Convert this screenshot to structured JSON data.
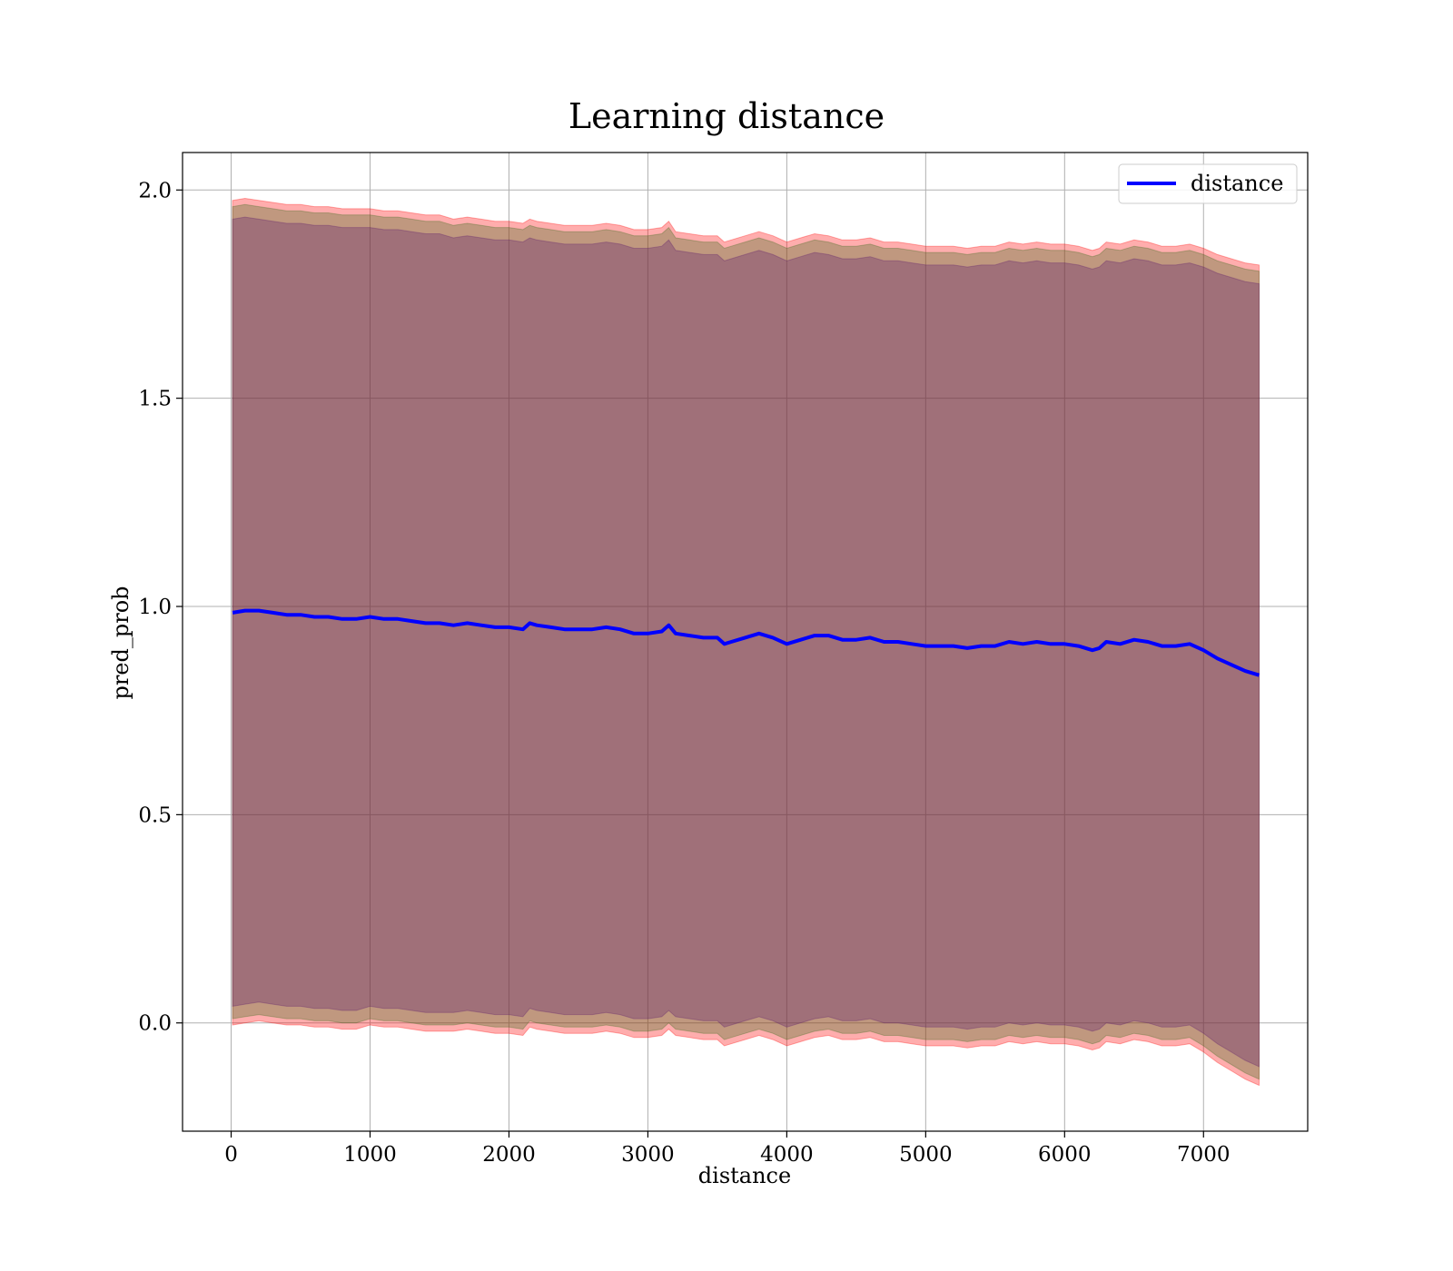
{
  "chart_data": {
    "type": "line",
    "title": "Learning distance",
    "xlabel": "distance",
    "ylabel": "pred_prob",
    "xlim": [
      -350,
      7750
    ],
    "ylim": [
      -0.26,
      2.09
    ],
    "xticks": [
      0,
      1000,
      2000,
      3000,
      4000,
      5000,
      6000,
      7000
    ],
    "yticks": [
      0.0,
      0.5,
      1.0,
      1.5,
      2.0
    ],
    "xtick_labels": [
      "0",
      "1000",
      "2000",
      "3000",
      "4000",
      "5000",
      "6000",
      "7000"
    ],
    "ytick_labels": [
      "0.0",
      "0.5",
      "1.0",
      "1.5",
      "2.0"
    ],
    "grid": true,
    "legend_position": "top-right",
    "series": [
      {
        "name": "distance",
        "color": "#0000ff",
        "x": [
          10,
          100,
          200,
          300,
          400,
          500,
          600,
          700,
          800,
          900,
          1000,
          1100,
          1200,
          1300,
          1400,
          1500,
          1600,
          1700,
          1800,
          1900,
          2000,
          2100,
          2150,
          2200,
          2300,
          2400,
          2500,
          2600,
          2700,
          2800,
          2900,
          3000,
          3100,
          3150,
          3200,
          3300,
          3400,
          3500,
          3550,
          3600,
          3700,
          3800,
          3900,
          4000,
          4100,
          4200,
          4300,
          4400,
          4500,
          4600,
          4700,
          4800,
          4900,
          5000,
          5100,
          5200,
          5300,
          5400,
          5500,
          5600,
          5700,
          5800,
          5900,
          6000,
          6100,
          6200,
          6250,
          6300,
          6400,
          6500,
          6600,
          6700,
          6800,
          6900,
          7000,
          7100,
          7200,
          7300,
          7400
        ],
        "y": [
          0.985,
          0.99,
          0.99,
          0.985,
          0.98,
          0.98,
          0.975,
          0.975,
          0.97,
          0.97,
          0.975,
          0.97,
          0.97,
          0.965,
          0.96,
          0.96,
          0.955,
          0.96,
          0.955,
          0.95,
          0.95,
          0.945,
          0.96,
          0.955,
          0.95,
          0.945,
          0.945,
          0.945,
          0.95,
          0.945,
          0.935,
          0.935,
          0.94,
          0.955,
          0.935,
          0.93,
          0.925,
          0.925,
          0.91,
          0.915,
          0.925,
          0.935,
          0.925,
          0.91,
          0.92,
          0.93,
          0.93,
          0.92,
          0.92,
          0.925,
          0.915,
          0.915,
          0.91,
          0.905,
          0.905,
          0.905,
          0.9,
          0.905,
          0.905,
          0.915,
          0.91,
          0.915,
          0.91,
          0.91,
          0.905,
          0.895,
          0.9,
          0.915,
          0.91,
          0.92,
          0.915,
          0.905,
          0.905,
          0.91,
          0.895,
          0.875,
          0.86,
          0.845,
          0.835
        ]
      }
    ],
    "bands": [
      {
        "color": "#ff0000",
        "opacity": 0.32,
        "upper_offset": [
          0.99,
          0.99,
          0.985,
          0.985,
          0.985,
          0.985,
          0.985,
          0.985,
          0.985,
          0.985,
          0.98,
          0.98,
          0.98,
          0.98,
          0.98,
          0.98,
          0.975,
          0.975,
          0.975,
          0.975,
          0.975,
          0.975,
          0.97,
          0.97,
          0.97,
          0.97,
          0.97,
          0.97,
          0.97,
          0.97,
          0.97,
          0.97,
          0.97,
          0.97,
          0.965,
          0.965,
          0.965,
          0.965,
          0.965,
          0.965,
          0.965,
          0.965,
          0.965,
          0.965,
          0.965,
          0.965,
          0.96,
          0.96,
          0.96,
          0.96,
          0.96,
          0.96,
          0.96,
          0.96,
          0.96,
          0.96,
          0.96,
          0.96,
          0.96,
          0.96,
          0.96,
          0.96,
          0.96,
          0.96,
          0.96,
          0.96,
          0.96,
          0.96,
          0.96,
          0.96,
          0.96,
          0.96,
          0.96,
          0.96,
          0.965,
          0.97,
          0.975,
          0.98,
          0.985
        ],
        "lower_offset": [
          0.99,
          0.99,
          0.985,
          0.985,
          0.985,
          0.985,
          0.985,
          0.985,
          0.985,
          0.985,
          0.98,
          0.98,
          0.98,
          0.98,
          0.98,
          0.98,
          0.975,
          0.975,
          0.975,
          0.975,
          0.975,
          0.975,
          0.97,
          0.97,
          0.97,
          0.97,
          0.97,
          0.97,
          0.97,
          0.97,
          0.97,
          0.97,
          0.97,
          0.97,
          0.965,
          0.965,
          0.965,
          0.965,
          0.965,
          0.965,
          0.965,
          0.965,
          0.965,
          0.965,
          0.965,
          0.965,
          0.96,
          0.96,
          0.96,
          0.96,
          0.96,
          0.96,
          0.96,
          0.96,
          0.96,
          0.96,
          0.96,
          0.96,
          0.96,
          0.96,
          0.96,
          0.96,
          0.96,
          0.96,
          0.96,
          0.96,
          0.96,
          0.96,
          0.96,
          0.96,
          0.96,
          0.96,
          0.96,
          0.96,
          0.965,
          0.97,
          0.975,
          0.98,
          0.985
        ]
      },
      {
        "color": "#3a6e1e",
        "opacity": 0.32,
        "upper_offset": [
          0.975,
          0.975,
          0.97,
          0.97,
          0.97,
          0.97,
          0.97,
          0.97,
          0.97,
          0.97,
          0.965,
          0.965,
          0.965,
          0.965,
          0.965,
          0.965,
          0.96,
          0.96,
          0.96,
          0.96,
          0.96,
          0.96,
          0.955,
          0.955,
          0.955,
          0.955,
          0.955,
          0.955,
          0.955,
          0.955,
          0.955,
          0.955,
          0.955,
          0.955,
          0.95,
          0.95,
          0.95,
          0.95,
          0.95,
          0.95,
          0.95,
          0.95,
          0.95,
          0.95,
          0.95,
          0.95,
          0.945,
          0.945,
          0.945,
          0.945,
          0.945,
          0.945,
          0.945,
          0.945,
          0.945,
          0.945,
          0.945,
          0.945,
          0.945,
          0.945,
          0.945,
          0.945,
          0.945,
          0.945,
          0.945,
          0.945,
          0.945,
          0.945,
          0.945,
          0.945,
          0.945,
          0.945,
          0.945,
          0.945,
          0.95,
          0.955,
          0.96,
          0.965,
          0.97
        ],
        "lower_offset": [
          0.975,
          0.975,
          0.97,
          0.97,
          0.97,
          0.97,
          0.97,
          0.97,
          0.97,
          0.97,
          0.965,
          0.965,
          0.965,
          0.965,
          0.965,
          0.965,
          0.96,
          0.96,
          0.96,
          0.96,
          0.96,
          0.96,
          0.955,
          0.955,
          0.955,
          0.955,
          0.955,
          0.955,
          0.955,
          0.955,
          0.955,
          0.955,
          0.955,
          0.955,
          0.95,
          0.95,
          0.95,
          0.95,
          0.95,
          0.95,
          0.95,
          0.95,
          0.95,
          0.95,
          0.95,
          0.95,
          0.945,
          0.945,
          0.945,
          0.945,
          0.945,
          0.945,
          0.945,
          0.945,
          0.945,
          0.945,
          0.945,
          0.945,
          0.945,
          0.945,
          0.945,
          0.945,
          0.945,
          0.945,
          0.945,
          0.945,
          0.945,
          0.945,
          0.945,
          0.945,
          0.945,
          0.945,
          0.945,
          0.945,
          0.95,
          0.955,
          0.96,
          0.965,
          0.97
        ]
      },
      {
        "color": "#5c1d6e",
        "opacity": 0.32,
        "upper_offset": [
          0.945,
          0.945,
          0.94,
          0.94,
          0.94,
          0.94,
          0.94,
          0.94,
          0.94,
          0.94,
          0.935,
          0.935,
          0.935,
          0.935,
          0.935,
          0.935,
          0.93,
          0.93,
          0.93,
          0.93,
          0.93,
          0.93,
          0.925,
          0.925,
          0.925,
          0.925,
          0.925,
          0.925,
          0.925,
          0.925,
          0.925,
          0.925,
          0.925,
          0.925,
          0.92,
          0.92,
          0.92,
          0.92,
          0.92,
          0.92,
          0.92,
          0.92,
          0.92,
          0.92,
          0.92,
          0.92,
          0.915,
          0.915,
          0.915,
          0.915,
          0.915,
          0.915,
          0.915,
          0.915,
          0.915,
          0.915,
          0.915,
          0.915,
          0.915,
          0.915,
          0.915,
          0.915,
          0.915,
          0.915,
          0.915,
          0.915,
          0.915,
          0.915,
          0.915,
          0.915,
          0.915,
          0.915,
          0.915,
          0.915,
          0.92,
          0.925,
          0.93,
          0.935,
          0.94
        ],
        "lower_offset": [
          0.945,
          0.945,
          0.94,
          0.94,
          0.94,
          0.94,
          0.94,
          0.94,
          0.94,
          0.94,
          0.935,
          0.935,
          0.935,
          0.935,
          0.935,
          0.935,
          0.93,
          0.93,
          0.93,
          0.93,
          0.93,
          0.93,
          0.925,
          0.925,
          0.925,
          0.925,
          0.925,
          0.925,
          0.925,
          0.925,
          0.925,
          0.925,
          0.925,
          0.925,
          0.92,
          0.92,
          0.92,
          0.92,
          0.92,
          0.92,
          0.92,
          0.92,
          0.92,
          0.92,
          0.92,
          0.92,
          0.915,
          0.915,
          0.915,
          0.915,
          0.915,
          0.915,
          0.915,
          0.915,
          0.915,
          0.915,
          0.915,
          0.915,
          0.915,
          0.915,
          0.915,
          0.915,
          0.915,
          0.915,
          0.915,
          0.915,
          0.915,
          0.915,
          0.915,
          0.915,
          0.915,
          0.915,
          0.915,
          0.915,
          0.92,
          0.925,
          0.93,
          0.935,
          0.94
        ]
      }
    ]
  }
}
